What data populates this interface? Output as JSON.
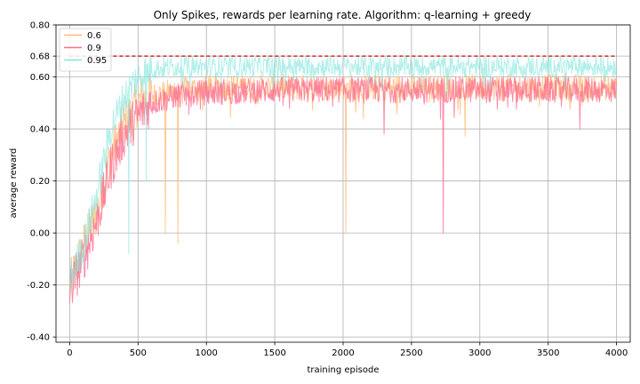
{
  "chart_data": {
    "type": "line",
    "title": "Only Spikes, rewards per learning rate. Algorithm: q-learning + greedy",
    "xlabel": "training episode",
    "ylabel": "average reward",
    "xlim": [
      -100,
      4100
    ],
    "ylim": [
      -0.42,
      0.8
    ],
    "xticks": [
      0,
      500,
      1000,
      1500,
      2000,
      2500,
      3000,
      3500,
      4000
    ],
    "yticks": [
      -0.4,
      -0.2,
      0.0,
      0.2,
      0.4,
      0.6,
      0.68,
      0.8
    ],
    "ytick_labels": [
      "-0.40",
      "-0.20",
      "0.00",
      "0.20",
      "0.40",
      "0.60",
      "0.68",
      "0.80"
    ],
    "grid": true,
    "legend_position": "top-left",
    "reference_line": {
      "y": 0.68,
      "color": "#d62728",
      "style": "dashed",
      "x_range": [
        0,
        4000
      ]
    },
    "series": [
      {
        "name": "0.6",
        "color": "#ffbb78",
        "opacity": 0.8,
        "x": [
          0,
          100,
          200,
          300,
          400,
          500,
          600,
          800,
          1000,
          1500,
          2000,
          2500,
          3000,
          3500,
          4000
        ],
        "y": [
          -0.2,
          -0.05,
          0.08,
          0.3,
          0.42,
          0.5,
          0.53,
          0.55,
          0.56,
          0.56,
          0.56,
          0.56,
          0.56,
          0.56,
          0.56
        ],
        "noise": 0.05,
        "dips": [
          [
            700,
            0.0
          ],
          [
            790,
            -0.04
          ],
          [
            2020,
            0.0
          ],
          [
            2890,
            0.37
          ]
        ]
      },
      {
        "name": "0.9",
        "color": "#ff6f91",
        "opacity": 0.8,
        "x": [
          0,
          100,
          200,
          300,
          400,
          500,
          600,
          800,
          1000,
          1500,
          2000,
          2500,
          3000,
          3500,
          4000
        ],
        "y": [
          -0.22,
          -0.1,
          0.05,
          0.25,
          0.38,
          0.45,
          0.5,
          0.53,
          0.54,
          0.55,
          0.55,
          0.55,
          0.55,
          0.55,
          0.55
        ],
        "noise": 0.05,
        "dips": [
          [
            2730,
            0.0
          ],
          [
            3730,
            0.4
          ],
          [
            2300,
            0.38
          ]
        ]
      },
      {
        "name": "0.95",
        "color": "#7fe5dc",
        "opacity": 0.6,
        "x": [
          0,
          100,
          200,
          300,
          400,
          500,
          600,
          800,
          1000,
          1500,
          2000,
          2500,
          3000,
          3500,
          4000
        ],
        "y": [
          -0.18,
          -0.05,
          0.15,
          0.4,
          0.52,
          0.6,
          0.63,
          0.64,
          0.64,
          0.64,
          0.64,
          0.64,
          0.64,
          0.64,
          0.64
        ],
        "noise": 0.04,
        "dips": [
          [
            430,
            -0.08
          ],
          [
            560,
            0.2
          ]
        ]
      }
    ]
  }
}
